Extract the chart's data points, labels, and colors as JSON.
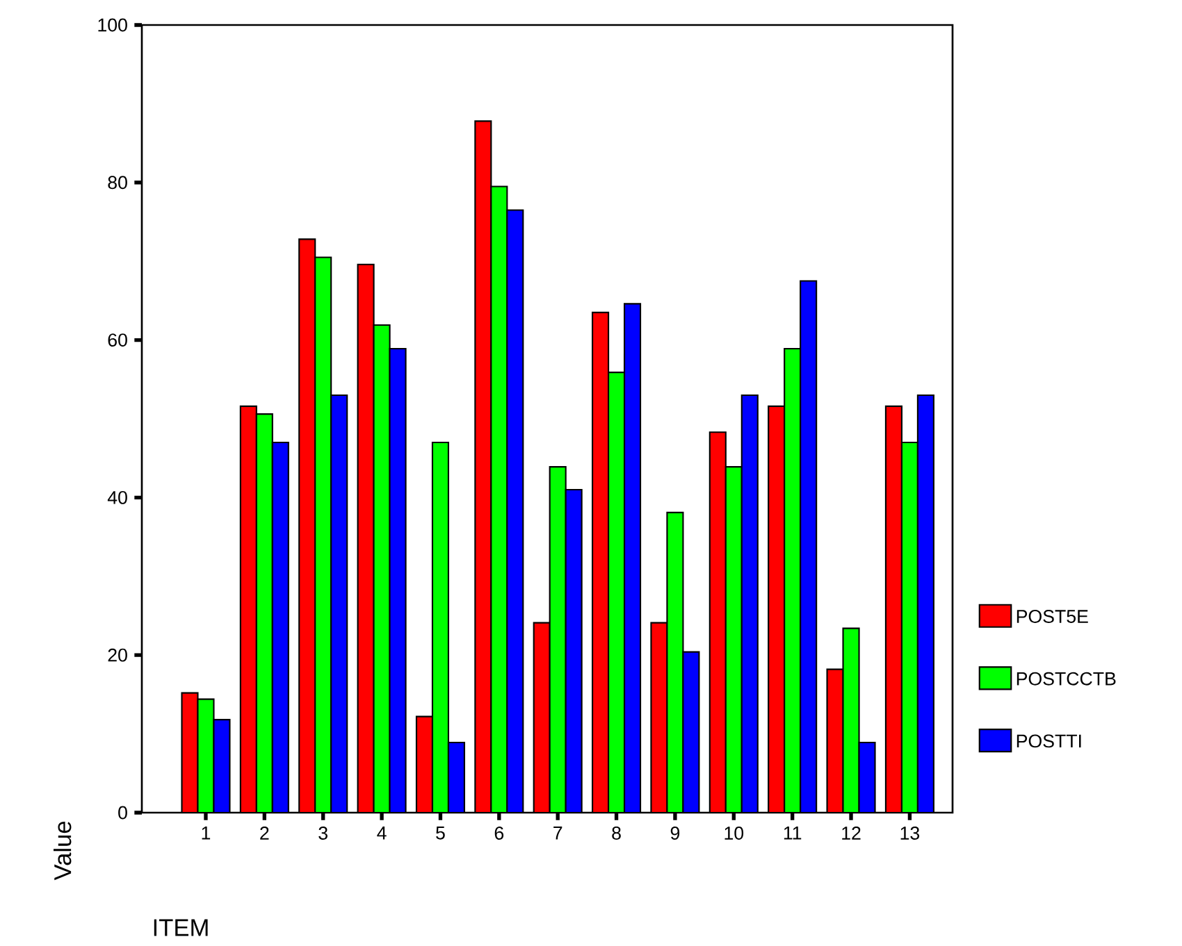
{
  "chart_data": {
    "type": "bar",
    "xlabel": "ITEM",
    "ylabel": "Value",
    "categories": [
      "1",
      "2",
      "3",
      "4",
      "5",
      "6",
      "7",
      "8",
      "9",
      "10",
      "11",
      "12",
      "13"
    ],
    "series": [
      {
        "name": "POST5E",
        "color": "#ff0000",
        "values": [
          15.2,
          51.6,
          72.8,
          69.6,
          12.2,
          87.8,
          24.1,
          63.5,
          24.1,
          48.3,
          51.6,
          18.2,
          51.6
        ]
      },
      {
        "name": "POSTCCTB",
        "color": "#00ff00",
        "values": [
          14.4,
          50.6,
          70.5,
          61.9,
          47.0,
          79.5,
          43.9,
          55.9,
          38.1,
          43.9,
          58.9,
          23.4,
          47.0
        ]
      },
      {
        "name": "POSTTI",
        "color": "#0000ff",
        "values": [
          11.8,
          47.0,
          53.0,
          58.9,
          8.9,
          76.5,
          41.0,
          64.6,
          20.4,
          53.0,
          67.5,
          8.9,
          53.0
        ]
      }
    ],
    "ylim": [
      0,
      100
    ],
    "yticks": [
      0,
      20,
      40,
      60,
      80,
      100
    ],
    "grid": false,
    "legend": "right"
  }
}
